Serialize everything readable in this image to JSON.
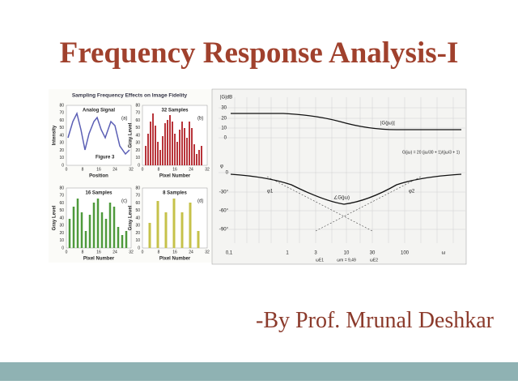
{
  "title": "Frequency Response Analysis-I",
  "author": "-By Prof. Mrunal Deshkar",
  "figure_left": {
    "title": "Sampling Frequency Effects on Image Fidelity",
    "caption": "Figure 3",
    "y_ticks": [
      "80",
      "70",
      "60",
      "50",
      "40",
      "30",
      "20",
      "10",
      "0"
    ],
    "x_ticks": [
      "0",
      "8",
      "16",
      "24",
      "32"
    ],
    "panels": [
      {
        "label": "Analog Signal",
        "tag": "(a)",
        "ylabel": "Intensity",
        "xlabel": "Position"
      },
      {
        "label": "32 Samples",
        "tag": "(b)",
        "ylabel": "Gray Level",
        "xlabel": "Pixel Number"
      },
      {
        "label": "16 Samples",
        "tag": "(c)",
        "ylabel": "Gray Level",
        "xlabel": "Pixel Number"
      },
      {
        "label": "8 Samples",
        "tag": "(d)",
        "ylabel": "Gray Level",
        "xlabel": "Pixel Number"
      }
    ]
  },
  "figure_right": {
    "mag_axis": "|G|dB",
    "mag_ticks": [
      "30",
      "20",
      "10",
      "0"
    ],
    "phase_axis": "φ",
    "phase_ticks": [
      "0",
      "-30°",
      "-60°",
      "-90°"
    ],
    "freq_ticks": [
      "0,1",
      "1",
      "3",
      "10",
      "30",
      "100",
      "ω"
    ],
    "freq_marks": [
      "ωE1",
      "ωm = 9,49",
      "ωE2"
    ],
    "mag_curve": "|G(jω)|",
    "phase_curve": "∠G(jω)",
    "phi1": "φ1",
    "phi2": "φ2",
    "formula": "G(jω) = 20 (jω/30 + 1)/(jω/3 + 1)"
  }
}
